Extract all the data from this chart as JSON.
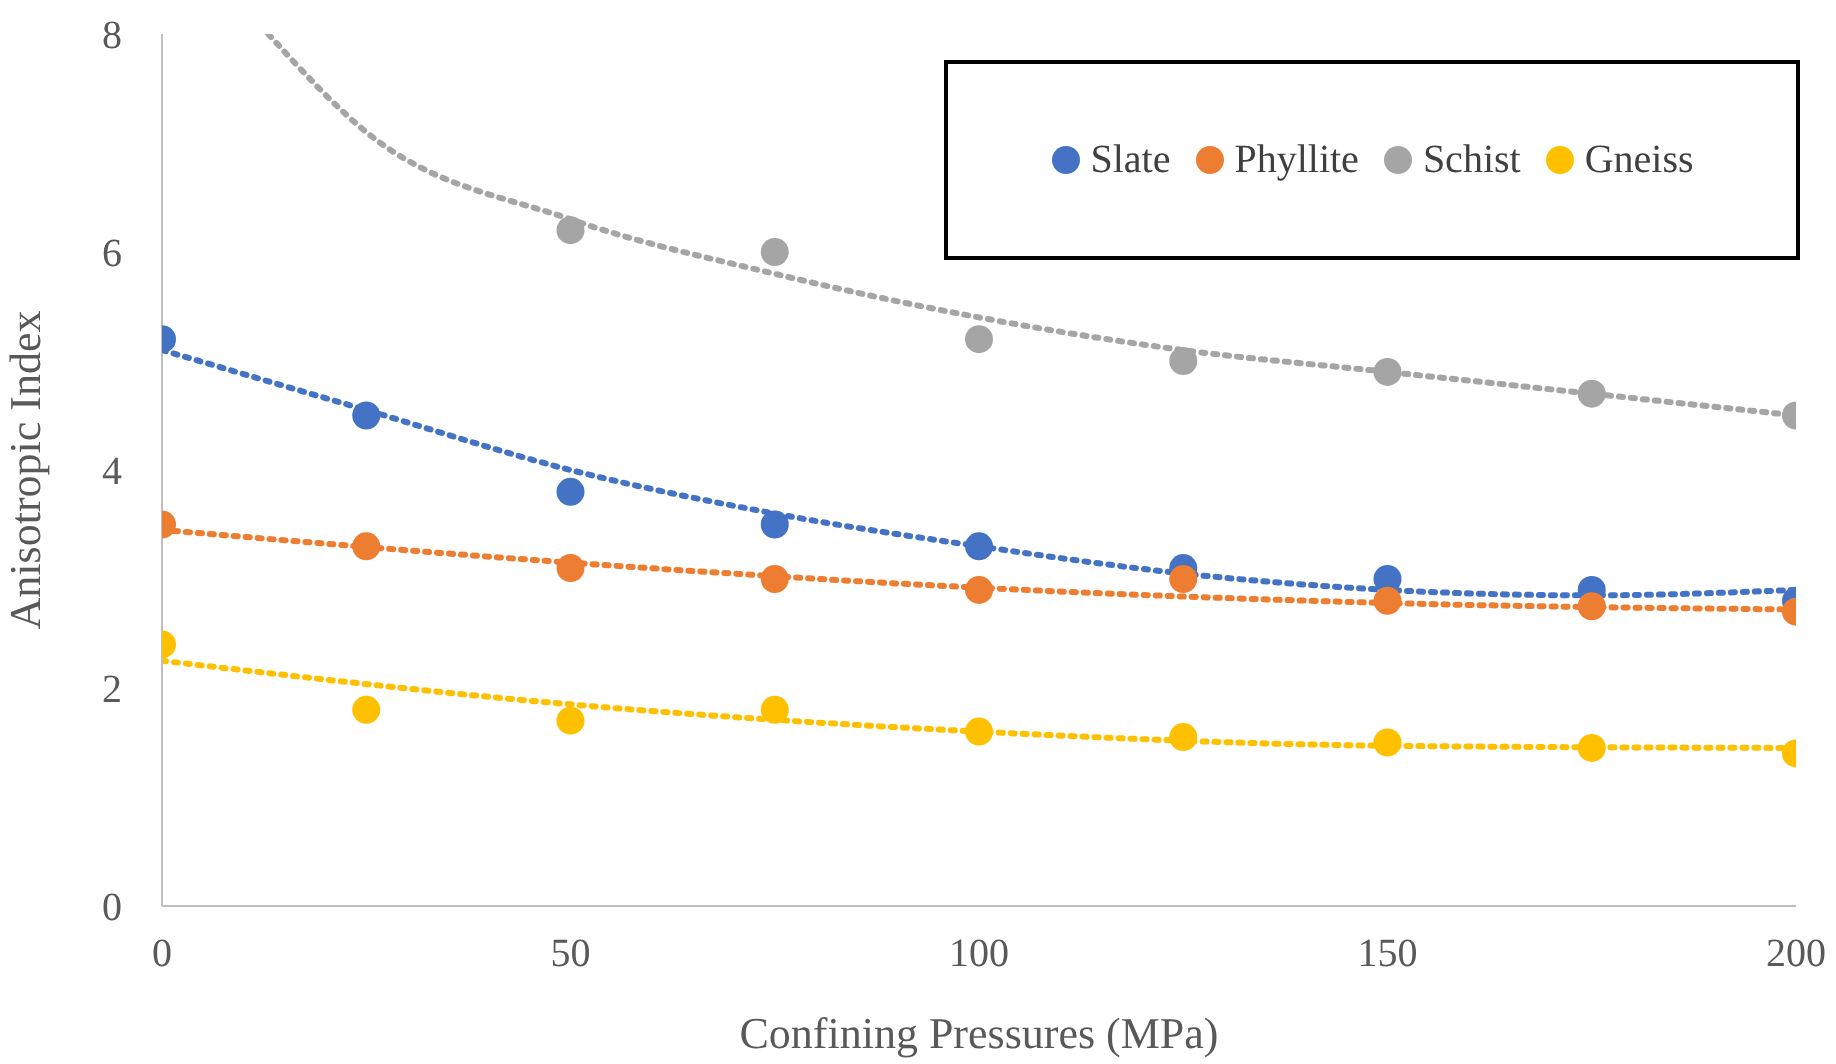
{
  "chart_data": {
    "type": "scatter",
    "xlabel": "Confining Pressures (MPa)",
    "ylabel": "Anisotropic Index",
    "x": [
      0,
      25,
      50,
      75,
      100,
      125,
      150,
      175,
      200
    ],
    "series": [
      {
        "name": "Slate",
        "color": "#4472c4",
        "values": [
          5.2,
          4.5,
          3.8,
          3.5,
          3.3,
          3.1,
          3.0,
          2.9,
          2.8
        ]
      },
      {
        "name": "Phyllite",
        "color": "#ed7d31",
        "values": [
          3.5,
          3.3,
          3.1,
          3.0,
          2.9,
          3.0,
          2.8,
          2.75,
          2.7
        ]
      },
      {
        "name": "Schist",
        "color": "#a5a5a5",
        "values": [
          null,
          null,
          6.2,
          6.0,
          5.2,
          5.0,
          4.9,
          4.7,
          4.5
        ]
      },
      {
        "name": "Gneiss",
        "color": "#ffc000",
        "values": [
          2.4,
          1.8,
          1.7,
          1.8,
          1.6,
          1.55,
          1.5,
          1.45,
          1.4
        ]
      },
      {
        "type": "line",
        "color": "#4472c4",
        "line_style": "dotted",
        "marker": "none",
        "x": [
          0,
          25,
          50,
          75,
          100,
          125,
          150,
          175,
          200
        ],
        "values": [
          5.1,
          4.55,
          4.0,
          3.6,
          3.3,
          3.05,
          2.9,
          2.85,
          2.9
        ]
      },
      {
        "type": "line",
        "color": "#ed7d31",
        "line_style": "dotted",
        "marker": "none",
        "x": [
          0,
          50,
          100,
          150,
          200
        ],
        "values": [
          3.45,
          3.15,
          2.92,
          2.78,
          2.72
        ]
      },
      {
        "type": "line",
        "color": "#a5a5a5",
        "line_style": "dotted",
        "marker": "none",
        "x": [
          13,
          25,
          50,
          75,
          100,
          125,
          150,
          175,
          200
        ],
        "values": [
          8.0,
          7.1,
          6.3,
          5.8,
          5.4,
          5.1,
          4.9,
          4.7,
          4.5
        ]
      },
      {
        "type": "line",
        "color": "#ffc000",
        "line_style": "dotted",
        "marker": "none",
        "x": [
          0,
          50,
          100,
          150,
          200
        ],
        "values": [
          2.25,
          1.85,
          1.6,
          1.47,
          1.45
        ]
      }
    ],
    "marker": "circle",
    "xlim": [
      0,
      200
    ],
    "xticks": [
      0,
      50,
      100,
      150,
      200
    ],
    "ylim": [
      0,
      8
    ],
    "yticks": [
      0,
      2,
      4,
      6,
      8
    ],
    "grid": false,
    "legend": "top right"
  }
}
